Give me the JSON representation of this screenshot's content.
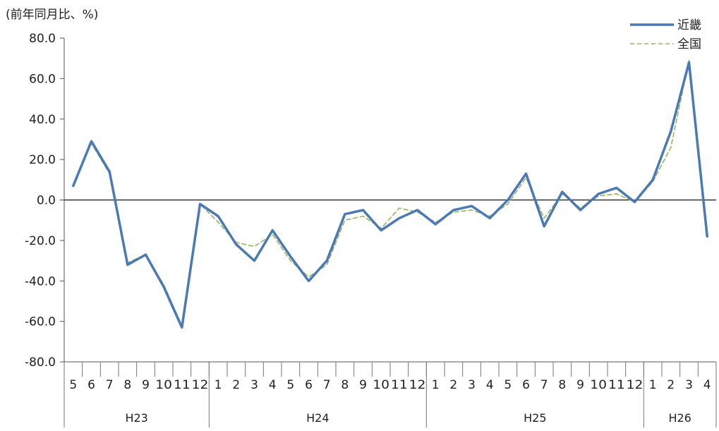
{
  "chart_data": {
    "type": "line",
    "ylabel": "(前年同月比、%)",
    "ylim": [
      -80,
      80
    ],
    "yticks": [
      80,
      60,
      40,
      20,
      0,
      -20,
      -40,
      -60,
      -80
    ],
    "ytick_labels": [
      "80.0",
      "60.0",
      "40.0",
      "20.0",
      "0.0",
      "-20.0",
      "-40.0",
      "-60.0",
      "-80.0"
    ],
    "categories": [
      "5",
      "6",
      "7",
      "8",
      "9",
      "10",
      "11",
      "12",
      "1",
      "2",
      "3",
      "4",
      "5",
      "6",
      "7",
      "8",
      "9",
      "10",
      "11",
      "12",
      "1",
      "2",
      "3",
      "4",
      "5",
      "6",
      "7",
      "8",
      "9",
      "10",
      "11",
      "12",
      "1",
      "2",
      "3",
      "4"
    ],
    "groups": [
      {
        "label": "H23",
        "start": 0,
        "end": 7
      },
      {
        "label": "H24",
        "start": 8,
        "end": 19
      },
      {
        "label": "H25",
        "start": 20,
        "end": 31
      },
      {
        "label": "H26",
        "start": 32,
        "end": 35
      }
    ],
    "legend_position": "top-right",
    "series": [
      {
        "name": "近畿",
        "color": "#4a7ab5",
        "style": "solid",
        "values": [
          7,
          29,
          14,
          -32,
          -27,
          -43,
          -63,
          -2,
          -8,
          -22,
          -30,
          -15,
          -28,
          -40,
          -30,
          -7,
          -5,
          -15,
          -9,
          -5,
          -12,
          -5,
          -3,
          -9,
          0,
          13,
          -13,
          4,
          -5,
          3,
          6,
          -1,
          10,
          34,
          68,
          -18
        ]
      },
      {
        "name": "全国",
        "color": "#9ab35a",
        "style": "dashed",
        "values": [
          8,
          28,
          13,
          -31,
          -27,
          -42,
          -62,
          -2,
          -11,
          -21,
          -23,
          -17,
          -30,
          -38,
          -32,
          -10,
          -8,
          -14,
          -4,
          -6,
          -11,
          -6,
          -5,
          -8,
          -2,
          11,
          -9,
          3,
          -4,
          2,
          3,
          -1,
          9,
          26,
          69,
          -15
        ]
      }
    ]
  }
}
